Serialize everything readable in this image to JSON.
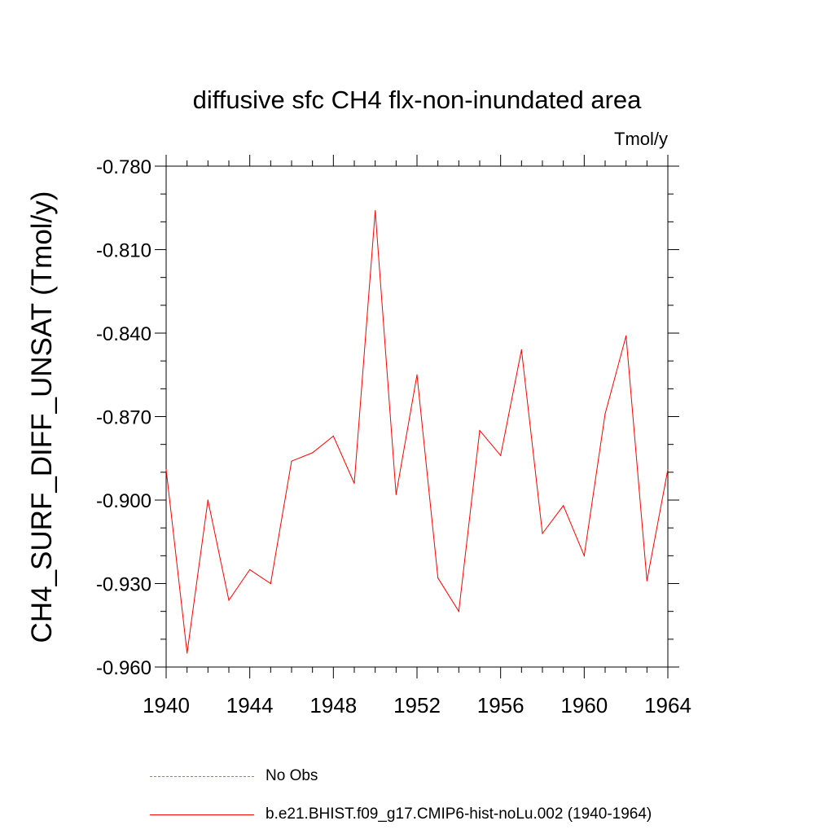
{
  "chart_data": {
    "type": "line",
    "title": "diffusive sfc CH4 flx-non-inundated area",
    "units_label": "Tmol/y",
    "xlabel": "",
    "ylabel": "CH4_SURF_DIFF_UNSAT  (Tmol/y)",
    "xlim": [
      1940,
      1964
    ],
    "ylim": [
      -0.96,
      -0.78
    ],
    "x_ticks": [
      1940,
      1944,
      1948,
      1952,
      1956,
      1960,
      1964
    ],
    "x_tick_labels": [
      "1940",
      "1944",
      "1948",
      "1952",
      "1956",
      "1960",
      "1964"
    ],
    "y_ticks": [
      -0.96,
      -0.93,
      -0.9,
      -0.87,
      -0.84,
      -0.81,
      -0.78
    ],
    "y_tick_labels": [
      "-0.960",
      "-0.930",
      "-0.900",
      "-0.870",
      "-0.840",
      "-0.810",
      "-0.780"
    ],
    "grid": false,
    "legend_placement": "bottom",
    "series": [
      {
        "name": "No Obs",
        "color": "#8080c0",
        "dash": "dashed",
        "x": [],
        "y": []
      },
      {
        "name": "b.e21.BHIST.f09_g17.CMIP6-hist-noLu.002 (1940-1964)",
        "color": "#ff0000",
        "dash": "solid",
        "x": [
          1940,
          1941,
          1942,
          1943,
          1944,
          1945,
          1946,
          1947,
          1948,
          1949,
          1950,
          1951,
          1952,
          1953,
          1954,
          1955,
          1956,
          1957,
          1958,
          1959,
          1960,
          1961,
          1962,
          1963,
          1964
        ],
        "y": [
          -0.889,
          -0.955,
          -0.9,
          -0.936,
          -0.925,
          -0.93,
          -0.886,
          -0.883,
          -0.877,
          -0.894,
          -0.796,
          -0.898,
          -0.855,
          -0.928,
          -0.94,
          -0.875,
          -0.884,
          -0.846,
          -0.912,
          -0.902,
          -0.92,
          -0.869,
          -0.841,
          -0.929,
          -0.889
        ]
      }
    ]
  }
}
